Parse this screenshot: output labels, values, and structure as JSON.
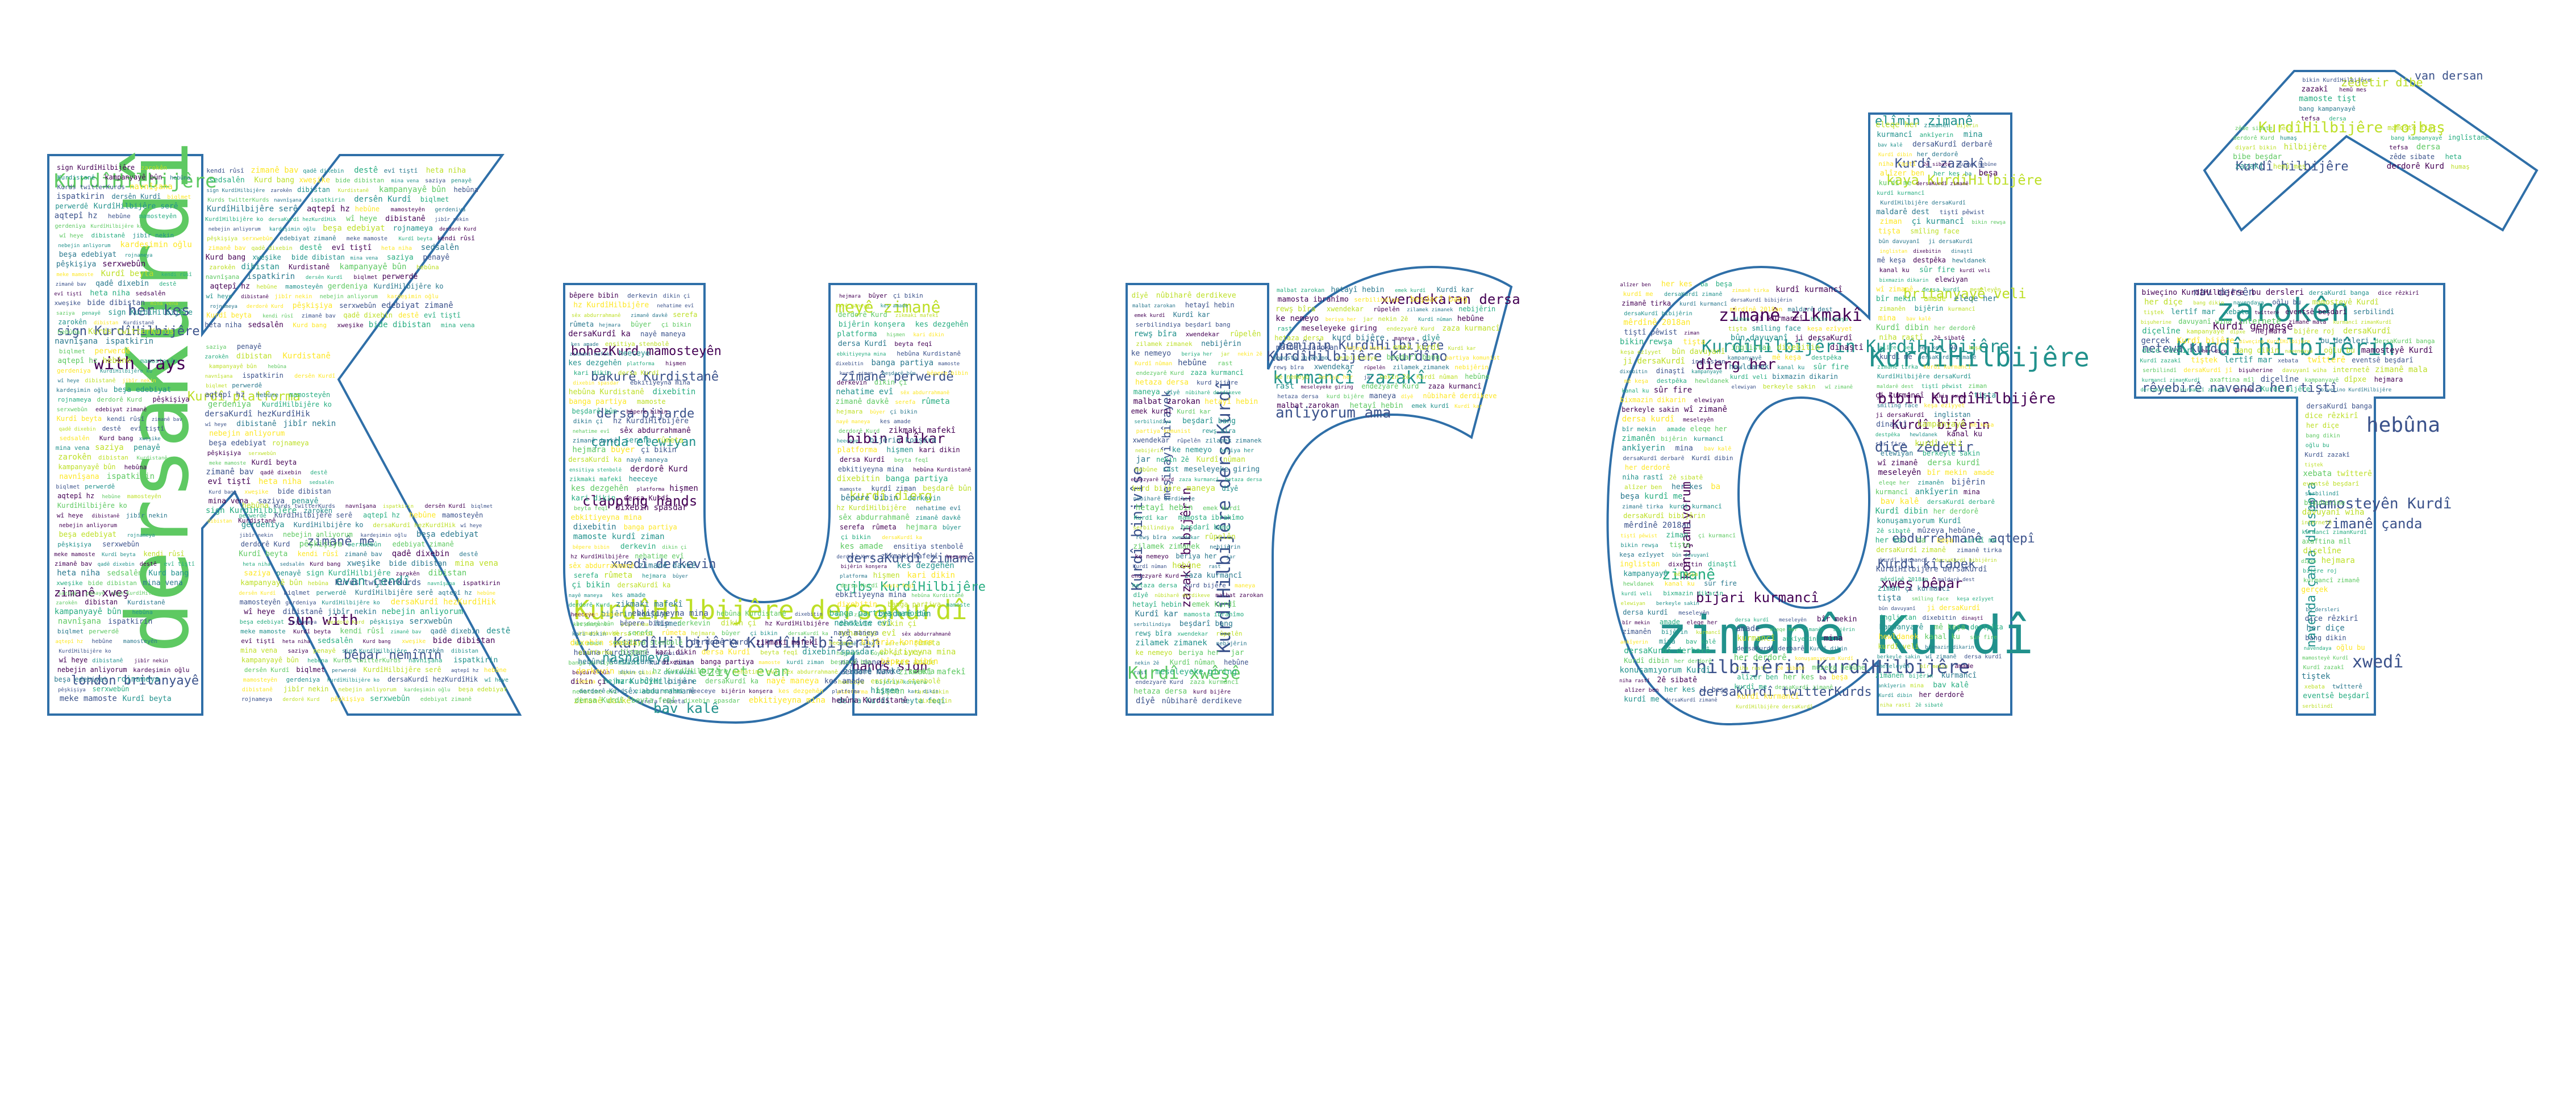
{
  "palette": {
    "outline": "#2f6fa8",
    "colors": [
      "#440154",
      "#3b528b",
      "#21918c",
      "#5ec962",
      "#bddf26",
      "#2a788e",
      "#27ad81",
      "#fde725"
    ]
  },
  "letters": [
    {
      "id": "letter-k",
      "large_words": [
        "dersaKurdî",
        "KurdîHilbijêre",
        "with rays",
        "her kes",
        "sign KurdîHilbijêre",
        "zimanê xweş",
        "london britanyayê",
        "Kurdî platforma",
        "zimanê me",
        "evan çendî",
        "sun with",
        "bêpar nemînin"
      ],
      "small_words": [
        "sign KurdîHilbijêre",
        "zarokên",
        "dibistan",
        "Kurdistanê",
        "kampanyayê bûn",
        "hebûna",
        "Kurds twitterKurds",
        "navnîşana",
        "ispatkirin",
        "dersên Kurdî",
        "biqlmet",
        "perwerdê",
        "KurdîHilbijêre serê",
        "aqtepî hz",
        "hebûne",
        "mamosteyên",
        "gerdeniya",
        "KurdîHilbijêre ko",
        "dersaKurdî hezKurdîHik",
        "wî heye",
        "dibistanê",
        "jibîr nekin",
        "nebejin anliyorum",
        "kardeşimin oğlu",
        "beşa edebiyat",
        "rojnameya",
        "derdorê Kurd",
        "pêşkişiya",
        "serxwebûn",
        "edebiyat zimanê",
        "meke mamoste",
        "Kurdî beyta",
        "kendi rûsî",
        "zimanê bav",
        "qadê dixebin",
        "destê",
        "evî tiştî",
        "heta niha",
        "sedsalên",
        "Kurd bang",
        "xweşike",
        "bide dibistan",
        "mina vena",
        "saziya",
        "penayê"
      ]
    },
    {
      "id": "letter-u",
      "large_words": [
        "KurdîHilbijêre dersaKurdî",
        "meyê zimanê",
        "bohezKurd mamosteyên",
        "bakurê Kurdistanê",
        "dersa bijarde",
        "çanda elewiyan",
        "clapping hands",
        "xwedî derkevin",
        "KurdîHilbijêre KurdîHilbijêrin",
        "nasnameya",
        "eziyet evan",
        "bav kalê",
        "hands sign",
        "dersaKurdî zimanê",
        "zimanê perwerdê",
        "bibin alîkar",
        "kurdî dîerg",
        "cujbs KurdîHilbijêre"
      ],
      "small_words": [
        "bêpere bibin",
        "derkevin",
        "dikin çi",
        "hz KurdîHilbijêre",
        "nehatime evî",
        "sêx abdurrahmanê",
        "zimanê davkê",
        "serefa",
        "rûmeta",
        "hejmara",
        "bûyer",
        "çi bikin",
        "dersaKurdî ka",
        "nayê maneya",
        "kes amade",
        "ensitiya stenbolê",
        "derdorê Kurd",
        "zikmaki mafekî",
        "heeceye",
        "bijêrin konşera",
        "kes dezgehên",
        "platforma",
        "hişmen",
        "kari dikin",
        "dersa Kurdî",
        "beyta feqî",
        "dixebin spasdar",
        "ebkitiyeyna mina",
        "hebûna Kurdistanê",
        "dixebitin",
        "banga partiya",
        "mamoste",
        "kurdî ziman",
        "beşdarê bûn"
      ]
    },
    {
      "id": "letter-r",
      "large_words": [
        "KurdîHilbijêre dersaKurdî",
        "kurmancî zazakî",
        "Kurdî xwêşê",
        "anliyorum ama",
        "xwendekaran dersa",
        "KurdîHilbijêre Kurdîno",
        "nemînin KurdîHilbijêre",
        "Kurdî binivîse",
        "zazakî bibijêrin",
        "meşinayî bîrayek"
      ],
      "small_words": [
        "dîyê",
        "nûbiharê derdikeve",
        "malbat zarokan",
        "hetayî hebin",
        "emek kurdî",
        "Kurdî kar",
        "mamosta ibrahîmo",
        "serbilindiya",
        "beşdarî bang",
        "partiya komunist",
        "rewş bîra",
        "xwendekar",
        "rûpelên",
        "zilamek zimanek",
        "nebijêrin",
        "ke nemeyo",
        "beriya her",
        "jar",
        "nekin 2ê",
        "Kurdî nûman",
        "hebûne",
        "rast",
        "meseleyeke giring",
        "endezyarê Kurd",
        "zaza kurmancî",
        "hetaza dersa",
        "kurd bijêre",
        "maneya"
      ]
    },
    {
      "id": "letter-d",
      "large_words": [
        "zimanê Kurdî",
        "zimanê zikmakî",
        "hilbijêrin KurdîHilbijêre",
        "KurdîHilbijêre",
        "KurdîHilbijêrin KurdîHilbijêre",
        "bibin KurdîHilbijêre",
        "konuşamıyorum",
        "dersaKurdî twitterKurds",
        "zimanê",
        "bijari kurmancî",
        "ebdurrehmanê aqtepî",
        "xweş bêpar",
        "Kurdî kîtabek",
        "Kurdî bijêrin",
        "dîerg her",
        "dice zêdetir",
        "britanyayê veli",
        "kaya KurdîHilbijêre",
        "Kurdî zazakî",
        "elîmin zimanê"
      ],
      "small_words": [
        "eleqe her",
        "zimanên",
        "bijêrin",
        "kurmancî",
        "ankîyerin",
        "mina",
        "bav kalê",
        "dersaKurdî derbarê",
        "Kurdî dibin",
        "her derdorê",
        "konuşamıyorum Kurdî",
        "niha rastî",
        "2ê sibatê",
        "mûzeya hebûne",
        "alîzer ben",
        "her kes",
        "ba",
        "beşa",
        "kurdî me",
        "dersaKurdî zimanê",
        "zimanê tirka",
        "kurdî kurmancî",
        "dersaKurdî bibijêrin",
        "KurdîHilbijêre dersaKurdî",
        "mêrdînê 2018an",
        "maldarê dest",
        "tiştî pêwist",
        "ziman",
        "çi kurmancî",
        "bikin rewşa",
        "tişta",
        "smîling face",
        "keşa ezîyyet",
        "bûn davuyanî",
        "ji dersaKurdî",
        "inglistan",
        "dixebitin",
        "dinaştî",
        "kampanyayê",
        "mê keşa",
        "destpêka",
        "hewldanek",
        "kanal ku",
        "sûr fire",
        "kurdî veli",
        "bixmazin dikarin",
        "elewiyan",
        "berkeyle sakin",
        "wî zimanê",
        "dersa kurdî",
        "meseleyên",
        "bîr mekin",
        "amade"
      ]
    },
    {
      "id": "letter-i",
      "large_words": [
        "zarokên",
        "Kurdî hilbijêrin",
        "hebûna",
        "xwedî",
        "mamosteyên Kurdî",
        "zimanê çanda",
        "navenda çanda dîaspora",
        "rêyebirê navenda her tiştî",
        "nav dersên",
        "netewa Kurd",
        "Kurdî gengeşe"
      ],
      "small_words": [
        "biweçino KurdîHilbijêre",
        "bu dersleri",
        "dersaKurdî banga",
        "dice rêzkirî",
        "her diçe",
        "bang dikin",
        "navendaya",
        "oğlu bu",
        "mamosteyê Kurdî",
        "Kurdî zazakî",
        "tiştek",
        "lertîf mar",
        "xebata",
        "twîtterê",
        "eventsê beşdarî",
        "serbilindî",
        "dersaKurdî jî",
        "bişuherine",
        "davuyanî wiha",
        "internetê",
        "zimanê mala",
        "kurmancî zimanKurdî",
        "axaftina mîl",
        "diçelîne",
        "kampanyayê",
        "dîpxe",
        "hejmara",
        "bijêre roj",
        "dersaKurdî",
        "kurmancî zimanê",
        "gerçek",
        "Kurdî bijêre"
      ]
    },
    {
      "id": "letter-hat",
      "large_words": [
        "KurdîHilbijêre rojbaş",
        "Kurdî hilbijêre",
        "van dersan",
        "zêdetir dibe"
      ],
      "small_words": [
        "bikin KurdîHilbijêre",
        "zazakî",
        "hemû mes",
        "mamoste tişt",
        "yên venga şarê",
        "bang kampanyayê",
        "inglîstane",
        "tefsa",
        "dersa",
        "kaya KurdîHilbijêre",
        "zêde sibate",
        "heta",
        "hewldanek wiha",
        "derdorê Kurd",
        "humaş",
        "gelo Kurd",
        "diyarî bikin",
        "hilbijêre",
        "bibe beşdar"
      ]
    }
  ]
}
